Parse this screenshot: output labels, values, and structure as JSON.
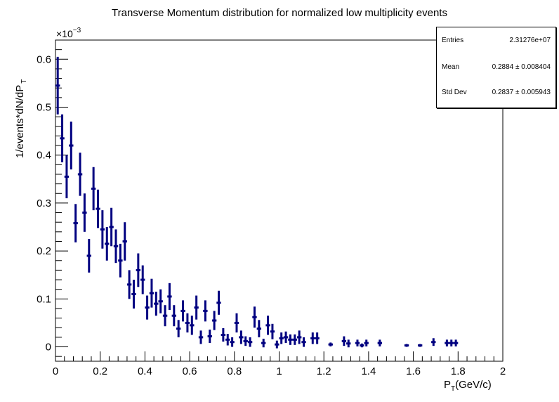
{
  "title": "Transverse Momentum distribution for normalized low multiplicity events",
  "stats": {
    "entries_label": "Entries",
    "entries_value": "2.31276e+07",
    "mean_label": "Mean",
    "mean_value": "0.2884 ± 0.008404",
    "std_label": "Std Dev",
    "std_value": "0.2837 ± 0.005943"
  },
  "chart_data": {
    "type": "histogram",
    "title": "Transverse Momentum distribution for normalized low multiplicity events",
    "xlabel_main": "P",
    "xlabel_sub": "T",
    "xlabel_rest": "(GeV/c)",
    "ylabel_main": "1/events*dN/dP",
    "ylabel_sub": "T",
    "exponent_base": "×10",
    "exponent_power": "−3",
    "xlim": [
      0,
      2
    ],
    "ylim": [
      -0.03,
      0.64
    ],
    "x_ticks": [
      0,
      0.2,
      0.4,
      0.6,
      0.8,
      1,
      1.2,
      1.4,
      1.6,
      1.8,
      2
    ],
    "x_tick_labels": [
      "0",
      "0.2",
      "0.4",
      "0.6",
      "0.8",
      "1",
      "1.2",
      "1.4",
      "1.6",
      "1.8",
      "2"
    ],
    "y_ticks": [
      0,
      0.1,
      0.2,
      0.3,
      0.4,
      0.5,
      0.6
    ],
    "y_tick_labels": [
      "0",
      "0.1",
      "0.2",
      "0.3",
      "0.4",
      "0.5",
      "0.6"
    ],
    "bin_width": 0.02,
    "color": "#000080",
    "points": [
      [
        0.01,
        0.545,
        0.06
      ],
      [
        0.03,
        0.435,
        0.05
      ],
      [
        0.05,
        0.355,
        0.045
      ],
      [
        0.07,
        0.42,
        0.05
      ],
      [
        0.09,
        0.258,
        0.04
      ],
      [
        0.11,
        0.36,
        0.045
      ],
      [
        0.13,
        0.28,
        0.04
      ],
      [
        0.15,
        0.19,
        0.035
      ],
      [
        0.17,
        0.33,
        0.045
      ],
      [
        0.19,
        0.288,
        0.04
      ],
      [
        0.21,
        0.245,
        0.04
      ],
      [
        0.23,
        0.215,
        0.035
      ],
      [
        0.25,
        0.25,
        0.04
      ],
      [
        0.27,
        0.21,
        0.035
      ],
      [
        0.29,
        0.18,
        0.035
      ],
      [
        0.31,
        0.22,
        0.04
      ],
      [
        0.33,
        0.13,
        0.03
      ],
      [
        0.35,
        0.11,
        0.03
      ],
      [
        0.37,
        0.16,
        0.035
      ],
      [
        0.39,
        0.14,
        0.03
      ],
      [
        0.41,
        0.082,
        0.025
      ],
      [
        0.43,
        0.112,
        0.03
      ],
      [
        0.45,
        0.09,
        0.025
      ],
      [
        0.47,
        0.095,
        0.025
      ],
      [
        0.49,
        0.065,
        0.022
      ],
      [
        0.51,
        0.105,
        0.028
      ],
      [
        0.53,
        0.065,
        0.022
      ],
      [
        0.55,
        0.038,
        0.018
      ],
      [
        0.57,
        0.075,
        0.022
      ],
      [
        0.59,
        0.05,
        0.02
      ],
      [
        0.61,
        0.045,
        0.02
      ],
      [
        0.63,
        0.082,
        0.025
      ],
      [
        0.65,
        0.02,
        0.014
      ],
      [
        0.67,
        0.075,
        0.022
      ],
      [
        0.69,
        0.022,
        0.014
      ],
      [
        0.71,
        0.055,
        0.02
      ],
      [
        0.73,
        0.092,
        0.025
      ],
      [
        0.75,
        0.025,
        0.014
      ],
      [
        0.77,
        0.015,
        0.012
      ],
      [
        0.79,
        0.01,
        0.01
      ],
      [
        0.81,
        0.05,
        0.02
      ],
      [
        0.83,
        0.02,
        0.014
      ],
      [
        0.85,
        0.012,
        0.01
      ],
      [
        0.87,
        0.01,
        0.01
      ],
      [
        0.89,
        0.062,
        0.022
      ],
      [
        0.91,
        0.038,
        0.018
      ],
      [
        0.93,
        0.008,
        0.009
      ],
      [
        0.95,
        0.045,
        0.02
      ],
      [
        0.97,
        0.032,
        0.016
      ],
      [
        0.99,
        0.005,
        0.008
      ],
      [
        1.01,
        0.018,
        0.012
      ],
      [
        1.03,
        0.02,
        0.012
      ],
      [
        1.05,
        0.015,
        0.011
      ],
      [
        1.07,
        0.015,
        0.011
      ],
      [
        1.09,
        0.02,
        0.014
      ],
      [
        1.11,
        0.01,
        0.01
      ],
      [
        1.15,
        0.018,
        0.012
      ],
      [
        1.17,
        0.018,
        0.012
      ],
      [
        1.23,
        0.005,
        0.004
      ],
      [
        1.29,
        0.012,
        0.01
      ],
      [
        1.31,
        0.007,
        0.008
      ],
      [
        1.35,
        0.008,
        0.007
      ],
      [
        1.37,
        0.003,
        0.004
      ],
      [
        1.39,
        0.008,
        0.007
      ],
      [
        1.45,
        0.008,
        0.007
      ],
      [
        1.57,
        0.003,
        0.003
      ],
      [
        1.63,
        0.003,
        0.003
      ],
      [
        1.69,
        0.01,
        0.008
      ],
      [
        1.75,
        0.008,
        0.007
      ],
      [
        1.77,
        0.008,
        0.007
      ],
      [
        1.79,
        0.008,
        0.007
      ]
    ]
  }
}
